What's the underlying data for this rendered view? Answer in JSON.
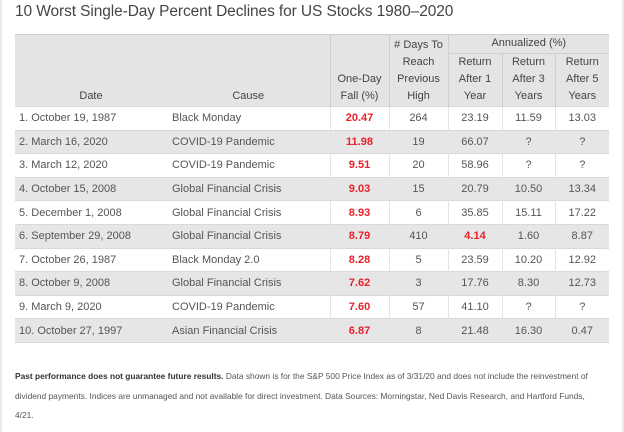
{
  "title": "10 Worst Single-Day Percent Declines for US Stocks 1980–2020",
  "table": {
    "group_header": "Annualized (%)",
    "columns": {
      "date": "Date",
      "cause": "Cause",
      "fall": [
        "One-Day",
        "Fall (%)"
      ],
      "days": [
        "# Days To",
        "Reach",
        "Previous",
        "High"
      ],
      "ret1": [
        "Return",
        "After 1",
        "Year"
      ],
      "ret3": [
        "Return",
        "After 3",
        "Years"
      ],
      "ret5": [
        "Return",
        "After 5",
        "Years"
      ]
    },
    "rows": [
      {
        "rank": "1.",
        "date": "October 19, 1987",
        "cause": "Black Monday",
        "fall": "20.47",
        "days": "264",
        "ret1": "23.19",
        "ret3": "11.59",
        "ret5": "13.03",
        "ret1_highlight": false
      },
      {
        "rank": "2.",
        "date": "March 16, 2020",
        "cause": "COVID-19 Pandemic",
        "fall": "11.98",
        "days": "19",
        "ret1": "66.07",
        "ret3": "?",
        "ret5": "?",
        "ret1_highlight": false
      },
      {
        "rank": "3.",
        "date": "March 12, 2020",
        "cause": "COVID-19 Pandemic",
        "fall": "9.51",
        "days": "20",
        "ret1": "58.96",
        "ret3": "?",
        "ret5": "?",
        "ret1_highlight": false
      },
      {
        "rank": "4.",
        "date": "October 15, 2008",
        "cause": "Global Financial Crisis",
        "fall": "9.03",
        "days": "15",
        "ret1": "20.79",
        "ret3": "10.50",
        "ret5": "13.34",
        "ret1_highlight": false
      },
      {
        "rank": "5.",
        "date": "December 1, 2008",
        "cause": "Global Financial Crisis",
        "fall": "8.93",
        "days": "6",
        "ret1": "35.85",
        "ret3": "15.11",
        "ret5": "17.22",
        "ret1_highlight": false
      },
      {
        "rank": "6.",
        "date": "September 29, 2008",
        "cause": "Global Financial Crisis",
        "fall": "8.79",
        "days": "410",
        "ret1": "4.14",
        "ret3": "1.60",
        "ret5": "8.87",
        "ret1_highlight": true
      },
      {
        "rank": "7.",
        "date": "October 26, 1987",
        "cause": "Black Monday 2.0",
        "fall": "8.28",
        "days": "5",
        "ret1": "23.59",
        "ret3": "10.20",
        "ret5": "12.92",
        "ret1_highlight": false
      },
      {
        "rank": "8.",
        "date": "October 9, 2008",
        "cause": "Global Financial Crisis",
        "fall": "7.62",
        "days": "3",
        "ret1": "17.76",
        "ret3": "8.30",
        "ret5": "12.73",
        "ret1_highlight": false
      },
      {
        "rank": "9.",
        "date": "March 9, 2020",
        "cause": "COVID-19 Pandemic",
        "fall": "7.60",
        "days": "57",
        "ret1": "41.10",
        "ret3": "?",
        "ret5": "?",
        "ret1_highlight": false
      },
      {
        "rank": "10.",
        "date": "October 27, 1997",
        "cause": "Asian Financial Crisis",
        "fall": "6.87",
        "days": "8",
        "ret1": "21.48",
        "ret3": "16.30",
        "ret5": "0.47",
        "ret1_highlight": false
      }
    ]
  },
  "footnote": {
    "bold": "Past performance does not guarantee future results.",
    "text": " Data shown is for the S&P 500 Price Index as of 3/31/20 and does not include the reinvestment of dividend payments. Indices are unmanaged and not available for direct investment. Data Sources: Morningstar, Ned Davis Research, and Hartford Funds, 4/21."
  },
  "colors": {
    "highlight_red": "#e8202a",
    "header_bg": "#e4e4e4",
    "stripe_bg": "#e6e6e6"
  }
}
